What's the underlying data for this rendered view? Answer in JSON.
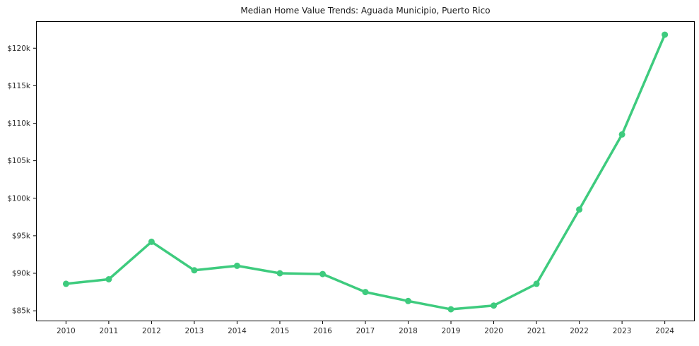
{
  "chart_data": {
    "type": "line",
    "title": "Median Home Value Trends: Aguada Municipio, Puerto Rico",
    "x": [
      2010,
      2011,
      2012,
      2013,
      2014,
      2015,
      2016,
      2017,
      2018,
      2019,
      2020,
      2021,
      2022,
      2023,
      2024
    ],
    "series": [
      {
        "name": "Median Home Value",
        "values": [
          88600,
          89200,
          94200,
          90400,
          91000,
          90000,
          89900,
          87500,
          86300,
          85200,
          85700,
          88600,
          98500,
          108500,
          121800
        ]
      }
    ],
    "xlabel": "",
    "ylabel": "",
    "xlim": [
      2009.3,
      2024.7
    ],
    "ylim": [
      83600,
      123600
    ],
    "xticks": [
      {
        "value": 2010,
        "label": "2010"
      },
      {
        "value": 2011,
        "label": "2011"
      },
      {
        "value": 2012,
        "label": "2012"
      },
      {
        "value": 2013,
        "label": "2013"
      },
      {
        "value": 2014,
        "label": "2014"
      },
      {
        "value": 2015,
        "label": "2015"
      },
      {
        "value": 2016,
        "label": "2016"
      },
      {
        "value": 2017,
        "label": "2017"
      },
      {
        "value": 2018,
        "label": "2018"
      },
      {
        "value": 2019,
        "label": "2019"
      },
      {
        "value": 2020,
        "label": "2020"
      },
      {
        "value": 2021,
        "label": "2021"
      },
      {
        "value": 2022,
        "label": "2022"
      },
      {
        "value": 2023,
        "label": "2023"
      },
      {
        "value": 2024,
        "label": "2024"
      }
    ],
    "yticks": [
      {
        "value": 85000,
        "label": "$85k"
      },
      {
        "value": 90000,
        "label": "$90k"
      },
      {
        "value": 95000,
        "label": "$95k"
      },
      {
        "value": 100000,
        "label": "$100k"
      },
      {
        "value": 105000,
        "label": "$105k"
      },
      {
        "value": 110000,
        "label": "$110k"
      },
      {
        "value": 115000,
        "label": "$115k"
      },
      {
        "value": 120000,
        "label": "$120k"
      }
    ],
    "grid": false,
    "legend": null,
    "style": {
      "line_color": "#3ecb7e",
      "marker_color": "#3ecb7e",
      "line_width": 3.5,
      "marker_radius": 4.5,
      "axis_color": "#000000",
      "tick_label_color": "#2b2b2b",
      "background": "#ffffff"
    }
  }
}
